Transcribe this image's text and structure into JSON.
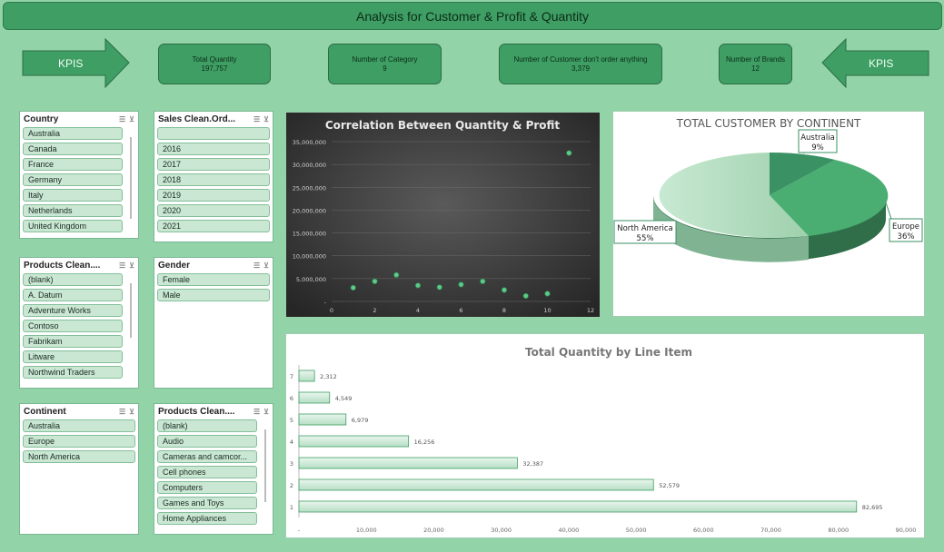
{
  "title": "Analysis for Customer & Profit & Quantity",
  "arrows": {
    "left_label": "KPIS",
    "right_label": "KPIS"
  },
  "kpis": [
    {
      "label": "Total Quantity",
      "value": "197,757"
    },
    {
      "label": "Number of Category",
      "value": "9"
    },
    {
      "label": "Number of Customer don't order anything",
      "value": "3,379"
    },
    {
      "label": "Number of Brands",
      "value": "12"
    }
  ],
  "slicers": {
    "country": {
      "title": "Country",
      "items": [
        "Australia",
        "Canada",
        "France",
        "Germany",
        "Italy",
        "Netherlands",
        "United Kingdom"
      ]
    },
    "order_year": {
      "title": "Sales Clean.Ord...",
      "items": [
        "",
        "2016",
        "2017",
        "2018",
        "2019",
        "2020",
        "2021"
      ]
    },
    "brand": {
      "title": "Products Clean....",
      "items": [
        "(blank)",
        "A. Datum",
        "Adventure Works",
        "Contoso",
        "Fabrikam",
        "Litware",
        "Northwind Traders"
      ]
    },
    "gender": {
      "title": "Gender",
      "items": [
        "Female",
        "Male"
      ]
    },
    "continent": {
      "title": "Continent",
      "items": [
        "Australia",
        "Europe",
        "North America"
      ]
    },
    "category": {
      "title": "Products Clean....",
      "items": [
        "(blank)",
        "Audio",
        "Cameras and camcor...",
        "Cell phones",
        "Computers",
        "Games and Toys",
        "Home Appliances"
      ]
    }
  },
  "colors": {
    "background": "#92d3a8",
    "accent": "#3e9e63",
    "slicer_item": "#c9e7d3"
  },
  "chart_data": [
    {
      "type": "scatter",
      "title": "Correlation Between Quantity & Profit",
      "xlim": [
        0,
        12
      ],
      "ylim": [
        0,
        35000000
      ],
      "x_ticks": [
        "0",
        "2",
        "4",
        "6",
        "8",
        "10",
        "12"
      ],
      "y_ticks": [
        "-",
        "5,000,000",
        "10,000,000",
        "15,000,000",
        "20,000,000",
        "25,000,000",
        "30,000,000",
        "35,000,000"
      ],
      "points": [
        {
          "x": 1,
          "y": 3000000
        },
        {
          "x": 2,
          "y": 4400000
        },
        {
          "x": 3,
          "y": 5800000
        },
        {
          "x": 4,
          "y": 3500000
        },
        {
          "x": 5,
          "y": 3100000
        },
        {
          "x": 6,
          "y": 3700000
        },
        {
          "x": 7,
          "y": 4400000
        },
        {
          "x": 8,
          "y": 2500000
        },
        {
          "x": 9,
          "y": 1200000
        },
        {
          "x": 10,
          "y": 1700000
        },
        {
          "x": 11,
          "y": 32500000
        }
      ],
      "grid": true
    },
    {
      "type": "pie",
      "title": "TOTAL CUSTOMER BY CONTINENT",
      "slices": [
        {
          "label": "Australia",
          "percent": "9%",
          "value": 9,
          "color": "#3a9163"
        },
        {
          "label": "Europe",
          "percent": "36%",
          "value": 36,
          "color": "#4aad72"
        },
        {
          "label": "North America",
          "percent": "55%",
          "value": 55,
          "color": "#a8d8b6"
        }
      ]
    },
    {
      "type": "bar",
      "orientation": "horizontal",
      "title": "Total Quantity by Line Item",
      "categories": [
        "1",
        "2",
        "3",
        "4",
        "5",
        "6",
        "7"
      ],
      "values": [
        82695,
        52579,
        32387,
        16256,
        6979,
        4549,
        2312
      ],
      "value_labels": [
        "82,695",
        "52,579",
        "32,387",
        "16,256",
        "6,979",
        "4,549",
        "2,312"
      ],
      "xlim": [
        0,
        90000
      ],
      "x_ticks": [
        "-",
        "10,000",
        "20,000",
        "30,000",
        "40,000",
        "50,000",
        "60,000",
        "70,000",
        "80,000",
        "90,000"
      ]
    }
  ]
}
